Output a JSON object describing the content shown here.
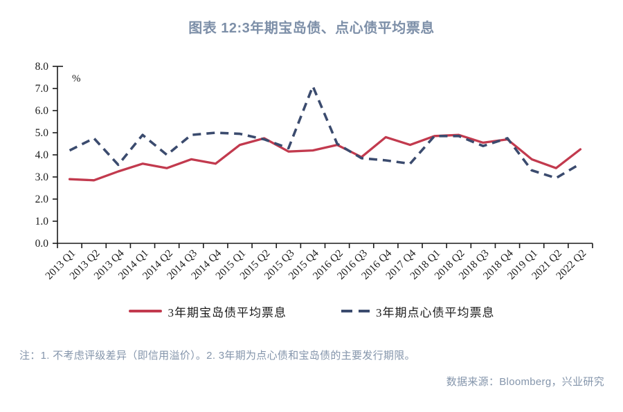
{
  "title": "图表 12:3年期宝岛债、点心债平均票息",
  "note": "注：1. 不考虑评级差异（即信用溢价）。2. 3年期为点心债和宝岛债的主要发行期限。",
  "source": "数据来源：Bloomberg，兴业研究",
  "colors": {
    "title": "#7d8fa8",
    "note": "#8495ab",
    "axis": "#1a1a1a",
    "formosa_line": "#c23a4e",
    "dimsum_line": "#3b4b6e"
  },
  "legend": {
    "items": [
      {
        "label": "3年期宝岛债平均票息",
        "style": "solid",
        "color": "#c23a4e"
      },
      {
        "label": "3年期点心债平均票息",
        "style": "dashed",
        "color": "#3b4b6e"
      }
    ]
  },
  "chart_data": {
    "type": "line",
    "title": "图表 12:3年期宝岛债、点心债平均票息",
    "ylabel": "%",
    "ylim": [
      0,
      8
    ],
    "ytick_step": 1.0,
    "grid": false,
    "legend_position": "bottom",
    "x_tick_mode": "between-categories",
    "categories": [
      "2013 Q1",
      "2013 Q2",
      "2013 Q4",
      "2014 Q1",
      "2014 Q2",
      "2014 Q3",
      "2014 Q4",
      "2015 Q1",
      "2015 Q2",
      "2015 Q3",
      "2015 Q4",
      "2016 Q2",
      "2016 Q3",
      "2016 Q4",
      "2017 Q4",
      "2018 Q1",
      "2018 Q2",
      "2018 Q3",
      "2018 Q4",
      "2019 Q1",
      "2021 Q2",
      "2022 Q2"
    ],
    "series": [
      {
        "name": "3年期宝岛债平均票息",
        "style": "solid",
        "color": "#c23a4e",
        "values": [
          2.9,
          2.85,
          3.25,
          3.6,
          3.4,
          3.8,
          3.6,
          4.45,
          4.75,
          4.15,
          4.2,
          4.45,
          3.9,
          4.8,
          4.45,
          4.85,
          4.9,
          4.55,
          4.7,
          3.8,
          3.4,
          4.25
        ]
      },
      {
        "name": "3年期点心债平均票息",
        "style": "dashed",
        "color": "#3b4b6e",
        "values": [
          4.2,
          4.75,
          3.55,
          4.9,
          4.0,
          4.9,
          5.0,
          4.95,
          4.7,
          4.3,
          7.1,
          4.5,
          3.85,
          3.75,
          3.6,
          4.85,
          4.85,
          4.4,
          4.75,
          3.3,
          2.95,
          3.6
        ]
      }
    ]
  }
}
